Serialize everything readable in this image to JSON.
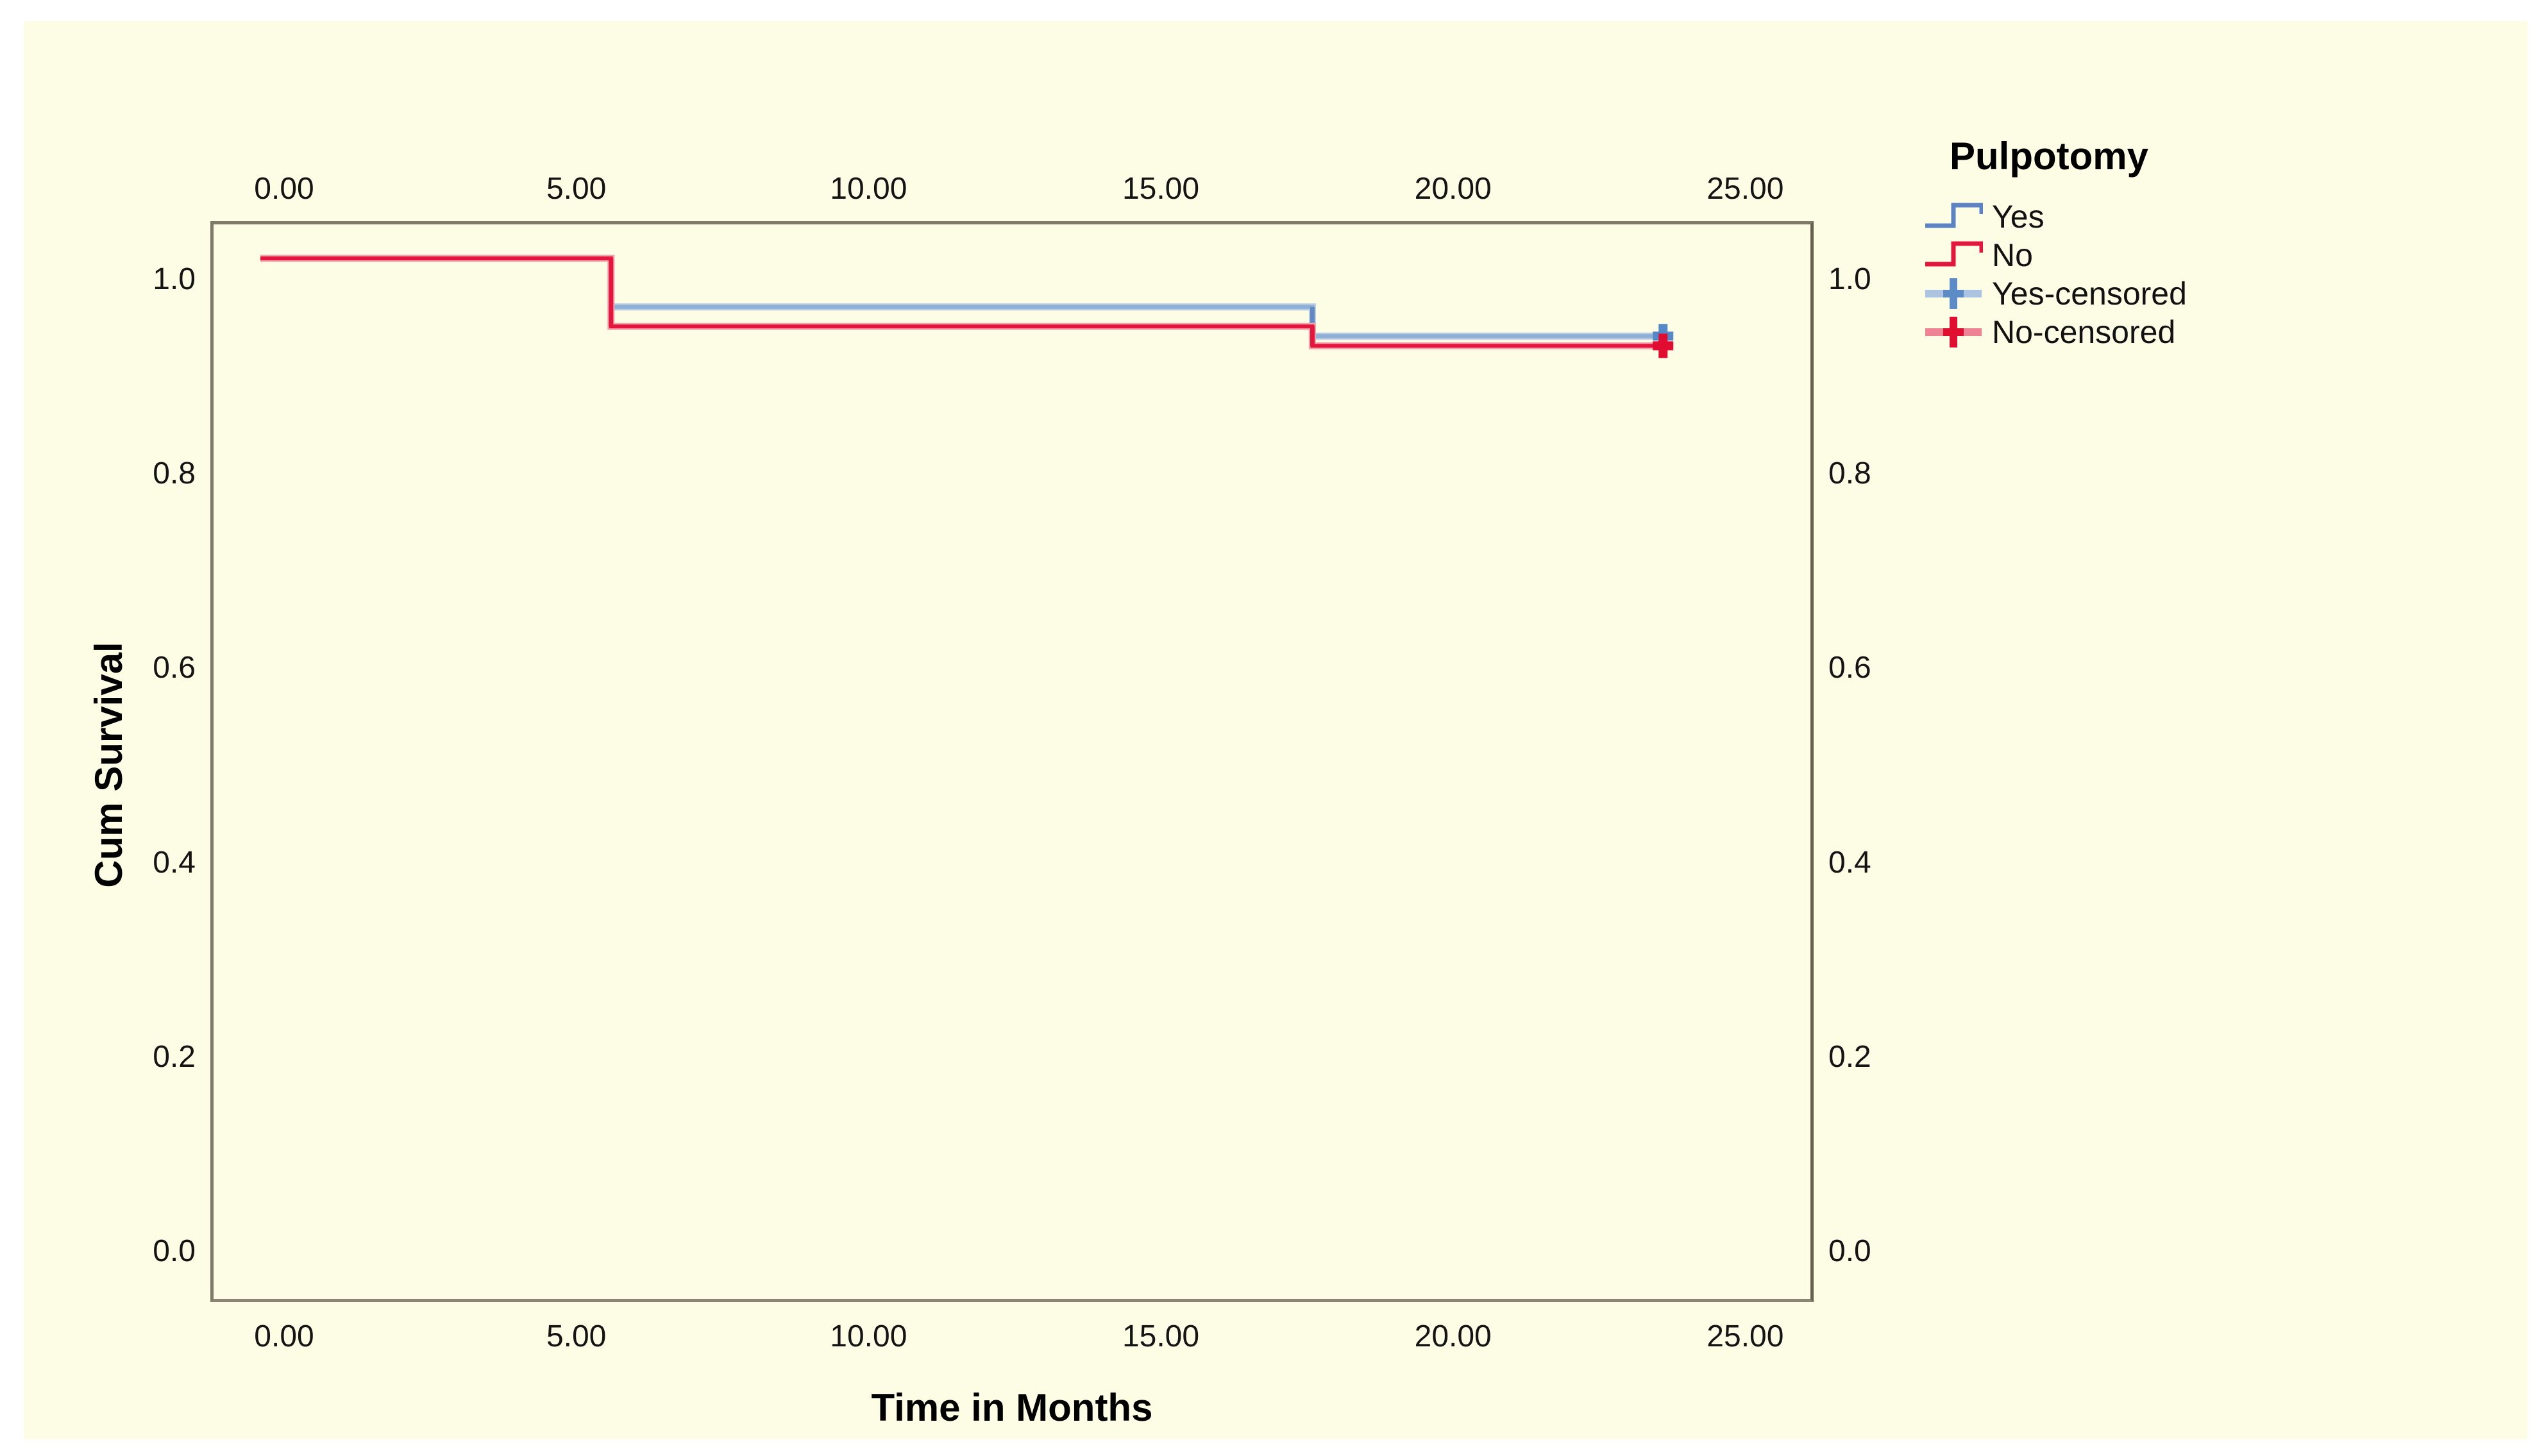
{
  "page": {
    "background": "#ffffff",
    "canvas_color": "#fdfce5",
    "frame_color": "#7f7969",
    "text_color": "#111111"
  },
  "legend": {
    "title": "Pulpotomy",
    "items": [
      {
        "id": "yes",
        "label": "Yes",
        "symbol": "step",
        "color": "#5c83c3"
      },
      {
        "id": "no",
        "label": "No",
        "symbol": "step",
        "color": "#e3173d"
      },
      {
        "id": "yes-censored",
        "label": "Yes-censored",
        "symbol": "plus",
        "line_color": "#aac4e2",
        "plus_color": "#5d8bc6"
      },
      {
        "id": "no-censored",
        "label": "No-censored",
        "symbol": "plus",
        "line_color": "#f08295",
        "plus_color": "#e00f32"
      }
    ]
  },
  "chart_data": {
    "type": "line",
    "subtype": "kaplan_meier_step",
    "title": "",
    "xlabel": "Time in Months",
    "ylabel": "Cum Survival",
    "legend_title": "Pulpotomy",
    "legend_position": "right-top",
    "grid": false,
    "x_range": [
      -1.262,
      26.17
    ],
    "y_range": [
      -0.0521,
      1.06
    ],
    "x_ticks": [
      {
        "value": 0,
        "label": "0.00"
      },
      {
        "value": 5,
        "label": "5.00"
      },
      {
        "value": 10,
        "label": "10.00"
      },
      {
        "value": 15,
        "label": "15.00"
      },
      {
        "value": 20,
        "label": "20.00"
      },
      {
        "value": 25,
        "label": "25.00"
      }
    ],
    "y_ticks": [
      {
        "value": 1.0,
        "label": "1.0"
      },
      {
        "value": 0.8,
        "label": "0.8"
      },
      {
        "value": 0.6,
        "label": "0.6"
      },
      {
        "value": 0.4,
        "label": "0.4"
      },
      {
        "value": 0.2,
        "label": "0.2"
      },
      {
        "value": 0.0,
        "label": "0.0"
      }
    ],
    "series": [
      {
        "name": "Yes",
        "color": "#8fafd6",
        "halo_color": "#b7cbe5",
        "step_color": "#6488c4",
        "censor_color": "#5688c8",
        "points": [
          [
            0,
            1.0
          ],
          [
            6,
            1.0
          ],
          [
            6,
            0.95
          ],
          [
            18,
            0.95
          ],
          [
            18,
            0.92
          ],
          [
            24,
            0.92
          ]
        ],
        "censored": [
          [
            24,
            0.92
          ]
        ]
      },
      {
        "name": "No",
        "color": "#e3173d",
        "halo_color": "#f5a2ac",
        "step_color": "#e3173d",
        "censor_color": "#e00d31",
        "points": [
          [
            0,
            1.0
          ],
          [
            6,
            1.0
          ],
          [
            6,
            0.93
          ],
          [
            18,
            0.93
          ],
          [
            18,
            0.91
          ],
          [
            24,
            0.91
          ]
        ],
        "censored": [
          [
            24,
            0.91
          ]
        ]
      }
    ]
  }
}
